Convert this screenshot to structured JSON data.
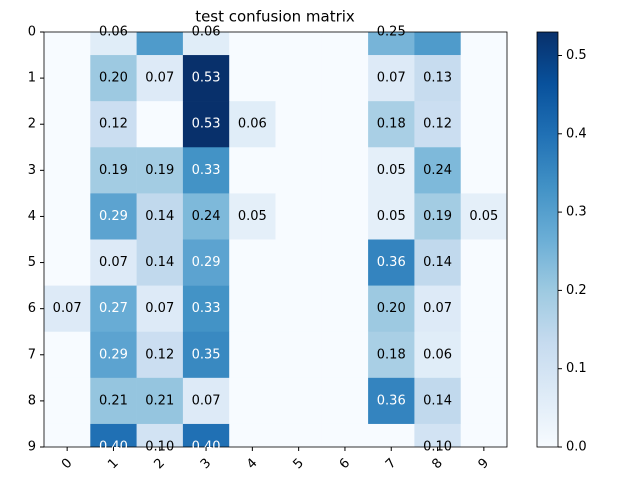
{
  "chart_data": {
    "type": "heatmap",
    "title": "test confusion matrix",
    "colormap": "Blues",
    "xticks": [
      0,
      1,
      2,
      3,
      4,
      5,
      6,
      7,
      8,
      9
    ],
    "xlim": [
      -0.5,
      9.5
    ],
    "yticks": [
      0,
      1,
      2,
      3,
      4,
      5,
      6,
      7,
      8,
      9
    ],
    "ylim": [
      9,
      0
    ],
    "values": [
      [
        0,
        0.06,
        0.31,
        0.06,
        0,
        0,
        0,
        0.25,
        0.31,
        0
      ],
      [
        0,
        0.2,
        0.07,
        0.53,
        0,
        0,
        0,
        0.07,
        0.13,
        0
      ],
      [
        0,
        0.12,
        0,
        0.53,
        0.06,
        0,
        0,
        0.18,
        0.12,
        0
      ],
      [
        0,
        0.19,
        0.19,
        0.33,
        0,
        0,
        0,
        0.05,
        0.24,
        0
      ],
      [
        0,
        0.29,
        0.14,
        0.24,
        0.05,
        0,
        0,
        0.05,
        0.19,
        0.05
      ],
      [
        0,
        0.07,
        0.14,
        0.29,
        0,
        0,
        0,
        0.36,
        0.14,
        0
      ],
      [
        0.07,
        0.27,
        0.07,
        0.33,
        0,
        0,
        0,
        0.2,
        0.07,
        0
      ],
      [
        0,
        0.29,
        0.12,
        0.35,
        0,
        0,
        0,
        0.18,
        0.06,
        0
      ],
      [
        0,
        0.21,
        0.21,
        0.07,
        0,
        0,
        0,
        0.36,
        0.14,
        0
      ],
      [
        0,
        0.4,
        0.1,
        0.4,
        0,
        0,
        0,
        0,
        0.1,
        0
      ]
    ],
    "value_labels": [
      [
        null,
        "0.06",
        null,
        "0.06",
        null,
        null,
        null,
        "0.25",
        null,
        null
      ],
      [
        null,
        "0.20",
        "0.07",
        "0.53",
        null,
        null,
        null,
        "0.07",
        "0.13",
        null
      ],
      [
        null,
        "0.12",
        null,
        "0.53",
        "0.06",
        null,
        null,
        "0.18",
        "0.12",
        null
      ],
      [
        null,
        "0.19",
        "0.19",
        "0.33",
        null,
        null,
        null,
        "0.05",
        "0.24",
        null
      ],
      [
        null,
        "0.29",
        "0.14",
        "0.24",
        "0.05",
        null,
        null,
        "0.05",
        "0.19",
        "0.05"
      ],
      [
        null,
        "0.07",
        "0.14",
        "0.29",
        null,
        null,
        null,
        "0.36",
        "0.14",
        null
      ],
      [
        "0.07",
        "0.27",
        "0.07",
        "0.33",
        null,
        null,
        null,
        "0.20",
        "0.07",
        null
      ],
      [
        null,
        "0.29",
        "0.12",
        "0.35",
        null,
        null,
        null,
        "0.18",
        "0.06",
        null
      ],
      [
        null,
        "0.21",
        "0.21",
        "0.07",
        null,
        null,
        null,
        "0.36",
        "0.14",
        null
      ],
      [
        null,
        "0.40",
        "0.10",
        "0.40",
        null,
        null,
        null,
        null,
        "0.10",
        null
      ]
    ],
    "colorbar_lim": [
      0,
      0.53
    ],
    "colorbar_ticks": [
      {
        "value": 0,
        "label": "0.0"
      },
      0.1,
      0.2,
      0.3,
      0.4,
      0.5
    ]
  }
}
